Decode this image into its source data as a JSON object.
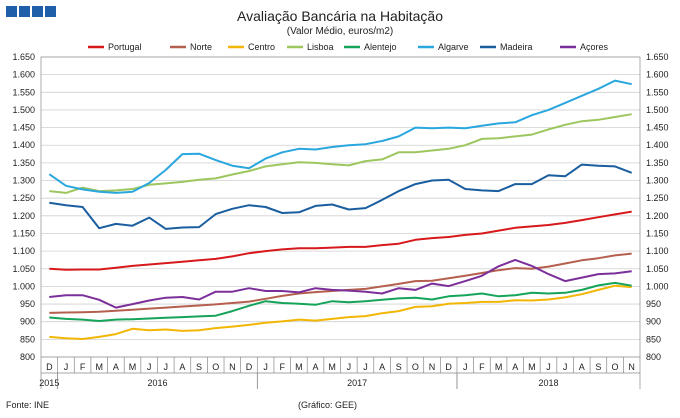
{
  "header": {
    "title": "Avaliação Bancária na Habitação",
    "subtitle": "(Valor Médio, euros/m2)"
  },
  "footer": {
    "source": "Fonte: INE",
    "credit": "(Gráfico: GEE)"
  },
  "chart_data": {
    "type": "line",
    "title": "Avaliação Bancária na Habitação",
    "subtitle": "(Valor Médio, euros/m2)",
    "ylim": [
      800,
      1650
    ],
    "yticks": [
      "800",
      "850",
      "900",
      "950",
      "1.000",
      "1.050",
      "1.100",
      "1.150",
      "1.200",
      "1.250",
      "1.300",
      "1.350",
      "1.400",
      "1.450",
      "1.500",
      "1.550",
      "1.600",
      "1.650"
    ],
    "x": [
      "D",
      "J",
      "F",
      "M",
      "A",
      "M",
      "J",
      "J",
      "A",
      "S",
      "O",
      "N",
      "D",
      "J",
      "F",
      "M",
      "A",
      "M",
      "J",
      "J",
      "A",
      "S",
      "O",
      "N",
      "D",
      "J",
      "F",
      "M",
      "A",
      "M",
      "J",
      "J",
      "A",
      "S",
      "O",
      "N"
    ],
    "years": [
      {
        "label": "2015",
        "start": 0,
        "end": 0
      },
      {
        "label": "2016",
        "start": 1,
        "end": 12
      },
      {
        "label": "2017",
        "start": 13,
        "end": 24
      },
      {
        "label": "2018",
        "start": 25,
        "end": 35
      }
    ],
    "grid": true,
    "legend_position": "top",
    "series": [
      {
        "name": "Portugal",
        "color": "#d7191c",
        "values": [
          1050,
          1047,
          1048,
          1048,
          1053,
          1058,
          1062,
          1066,
          1070,
          1074,
          1078,
          1085,
          1094,
          1100,
          1105,
          1108,
          1108,
          1110,
          1112,
          1112,
          1117,
          1121,
          1132,
          1137,
          1140,
          1146,
          1150,
          1158,
          1166,
          1170,
          1174,
          1180,
          1188,
          1196,
          1204,
          1212
        ]
      },
      {
        "name": "Norte",
        "color": "#b5604e",
        "values": [
          925,
          926,
          927,
          928,
          931,
          934,
          937,
          940,
          943,
          946,
          949,
          953,
          957,
          965,
          973,
          980,
          984,
          987,
          990,
          993,
          1000,
          1007,
          1015,
          1016,
          1023,
          1030,
          1038,
          1046,
          1052,
          1050,
          1056,
          1065,
          1074,
          1080,
          1088,
          1093
        ]
      },
      {
        "name": "Centro",
        "color": "#f2b705",
        "values": [
          857,
          853,
          851,
          857,
          865,
          880,
          876,
          878,
          874,
          876,
          882,
          886,
          891,
          897,
          901,
          906,
          903,
          908,
          913,
          916,
          924,
          930,
          942,
          944,
          951,
          953,
          956,
          956,
          961,
          960,
          963,
          969,
          978,
          990,
          1002,
          998
        ]
      },
      {
        "name": "Lisboa",
        "color": "#9ec65f",
        "values": [
          1270,
          1265,
          1280,
          1270,
          1272,
          1276,
          1288,
          1292,
          1296,
          1302,
          1306,
          1317,
          1327,
          1340,
          1346,
          1352,
          1350,
          1346,
          1343,
          1355,
          1360,
          1380,
          1380,
          1385,
          1390,
          1400,
          1418,
          1420,
          1425,
          1430,
          1445,
          1458,
          1468,
          1472,
          1480,
          1488
        ]
      },
      {
        "name": "Alentejo",
        "color": "#16a35a",
        "values": [
          912,
          908,
          906,
          902,
          906,
          907,
          909,
          911,
          913,
          915,
          917,
          930,
          945,
          958,
          953,
          951,
          948,
          958,
          955,
          958,
          962,
          966,
          968,
          963,
          972,
          975,
          980,
          972,
          975,
          982,
          980,
          982,
          990,
          1003,
          1010,
          1002
        ]
      },
      {
        "name": "Algarve",
        "color": "#2aa7de",
        "values": [
          1318,
          1285,
          1275,
          1268,
          1265,
          1268,
          1293,
          1330,
          1375,
          1376,
          1358,
          1342,
          1335,
          1362,
          1380,
          1390,
          1388,
          1395,
          1400,
          1403,
          1412,
          1425,
          1450,
          1448,
          1450,
          1448,
          1455,
          1462,
          1465,
          1485,
          1500,
          1520,
          1540,
          1560,
          1583,
          1573
        ]
      },
      {
        "name": "Madeira",
        "color": "#1a5ea0",
        "values": [
          1237,
          1230,
          1225,
          1165,
          1177,
          1172,
          1195,
          1163,
          1167,
          1168,
          1205,
          1220,
          1230,
          1225,
          1208,
          1210,
          1228,
          1232,
          1218,
          1222,
          1245,
          1270,
          1290,
          1300,
          1302,
          1276,
          1272,
          1270,
          1290,
          1290,
          1315,
          1312,
          1345,
          1342,
          1340,
          1322
        ]
      },
      {
        "name": "Açores",
        "color": "#7b2f9a",
        "values": [
          970,
          975,
          975,
          962,
          940,
          950,
          960,
          968,
          970,
          963,
          985,
          985,
          995,
          987,
          987,
          983,
          995,
          990,
          988,
          985,
          980,
          995,
          990,
          1008,
          1001,
          1015,
          1030,
          1057,
          1075,
          1058,
          1035,
          1015,
          1025,
          1035,
          1037,
          1043
        ]
      }
    ]
  }
}
